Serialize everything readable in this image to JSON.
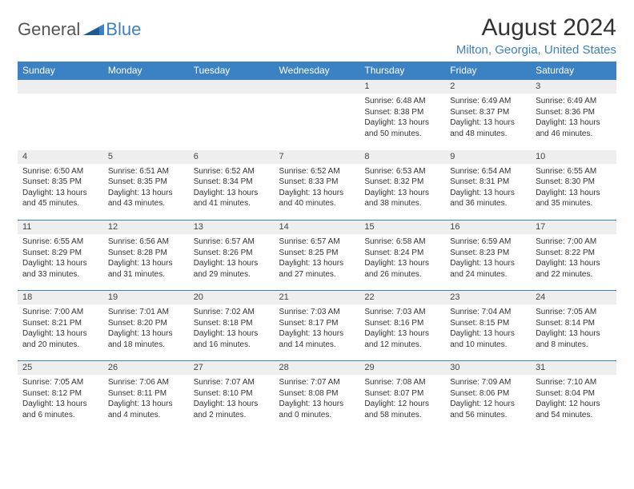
{
  "logo": {
    "text1": "General",
    "text2": "Blue"
  },
  "title": "August 2024",
  "location": "Milton, Georgia, United States",
  "colors": {
    "header_bg": "#3b82c4",
    "header_text": "#ffffff",
    "daynum_bg": "#eeeeee",
    "border": "#3b82c4",
    "body_text": "#333333",
    "logo_gray": "#555555",
    "logo_blue": "#3b82c4"
  },
  "day_headers": [
    "Sunday",
    "Monday",
    "Tuesday",
    "Wednesday",
    "Thursday",
    "Friday",
    "Saturday"
  ],
  "weeks": [
    [
      null,
      null,
      null,
      null,
      {
        "n": "1",
        "sr": "6:48 AM",
        "ss": "8:38 PM",
        "dl": "13 hours and 50 minutes."
      },
      {
        "n": "2",
        "sr": "6:49 AM",
        "ss": "8:37 PM",
        "dl": "13 hours and 48 minutes."
      },
      {
        "n": "3",
        "sr": "6:49 AM",
        "ss": "8:36 PM",
        "dl": "13 hours and 46 minutes."
      }
    ],
    [
      {
        "n": "4",
        "sr": "6:50 AM",
        "ss": "8:35 PM",
        "dl": "13 hours and 45 minutes."
      },
      {
        "n": "5",
        "sr": "6:51 AM",
        "ss": "8:35 PM",
        "dl": "13 hours and 43 minutes."
      },
      {
        "n": "6",
        "sr": "6:52 AM",
        "ss": "8:34 PM",
        "dl": "13 hours and 41 minutes."
      },
      {
        "n": "7",
        "sr": "6:52 AM",
        "ss": "8:33 PM",
        "dl": "13 hours and 40 minutes."
      },
      {
        "n": "8",
        "sr": "6:53 AM",
        "ss": "8:32 PM",
        "dl": "13 hours and 38 minutes."
      },
      {
        "n": "9",
        "sr": "6:54 AM",
        "ss": "8:31 PM",
        "dl": "13 hours and 36 minutes."
      },
      {
        "n": "10",
        "sr": "6:55 AM",
        "ss": "8:30 PM",
        "dl": "13 hours and 35 minutes."
      }
    ],
    [
      {
        "n": "11",
        "sr": "6:55 AM",
        "ss": "8:29 PM",
        "dl": "13 hours and 33 minutes."
      },
      {
        "n": "12",
        "sr": "6:56 AM",
        "ss": "8:28 PM",
        "dl": "13 hours and 31 minutes."
      },
      {
        "n": "13",
        "sr": "6:57 AM",
        "ss": "8:26 PM",
        "dl": "13 hours and 29 minutes."
      },
      {
        "n": "14",
        "sr": "6:57 AM",
        "ss": "8:25 PM",
        "dl": "13 hours and 27 minutes."
      },
      {
        "n": "15",
        "sr": "6:58 AM",
        "ss": "8:24 PM",
        "dl": "13 hours and 26 minutes."
      },
      {
        "n": "16",
        "sr": "6:59 AM",
        "ss": "8:23 PM",
        "dl": "13 hours and 24 minutes."
      },
      {
        "n": "17",
        "sr": "7:00 AM",
        "ss": "8:22 PM",
        "dl": "13 hours and 22 minutes."
      }
    ],
    [
      {
        "n": "18",
        "sr": "7:00 AM",
        "ss": "8:21 PM",
        "dl": "13 hours and 20 minutes."
      },
      {
        "n": "19",
        "sr": "7:01 AM",
        "ss": "8:20 PM",
        "dl": "13 hours and 18 minutes."
      },
      {
        "n": "20",
        "sr": "7:02 AM",
        "ss": "8:18 PM",
        "dl": "13 hours and 16 minutes."
      },
      {
        "n": "21",
        "sr": "7:03 AM",
        "ss": "8:17 PM",
        "dl": "13 hours and 14 minutes."
      },
      {
        "n": "22",
        "sr": "7:03 AM",
        "ss": "8:16 PM",
        "dl": "13 hours and 12 minutes."
      },
      {
        "n": "23",
        "sr": "7:04 AM",
        "ss": "8:15 PM",
        "dl": "13 hours and 10 minutes."
      },
      {
        "n": "24",
        "sr": "7:05 AM",
        "ss": "8:14 PM",
        "dl": "13 hours and 8 minutes."
      }
    ],
    [
      {
        "n": "25",
        "sr": "7:05 AM",
        "ss": "8:12 PM",
        "dl": "13 hours and 6 minutes."
      },
      {
        "n": "26",
        "sr": "7:06 AM",
        "ss": "8:11 PM",
        "dl": "13 hours and 4 minutes."
      },
      {
        "n": "27",
        "sr": "7:07 AM",
        "ss": "8:10 PM",
        "dl": "13 hours and 2 minutes."
      },
      {
        "n": "28",
        "sr": "7:07 AM",
        "ss": "8:08 PM",
        "dl": "13 hours and 0 minutes."
      },
      {
        "n": "29",
        "sr": "7:08 AM",
        "ss": "8:07 PM",
        "dl": "12 hours and 58 minutes."
      },
      {
        "n": "30",
        "sr": "7:09 AM",
        "ss": "8:06 PM",
        "dl": "12 hours and 56 minutes."
      },
      {
        "n": "31",
        "sr": "7:10 AM",
        "ss": "8:04 PM",
        "dl": "12 hours and 54 minutes."
      }
    ]
  ],
  "labels": {
    "sunrise": "Sunrise:",
    "sunset": "Sunset:",
    "daylight": "Daylight:"
  }
}
